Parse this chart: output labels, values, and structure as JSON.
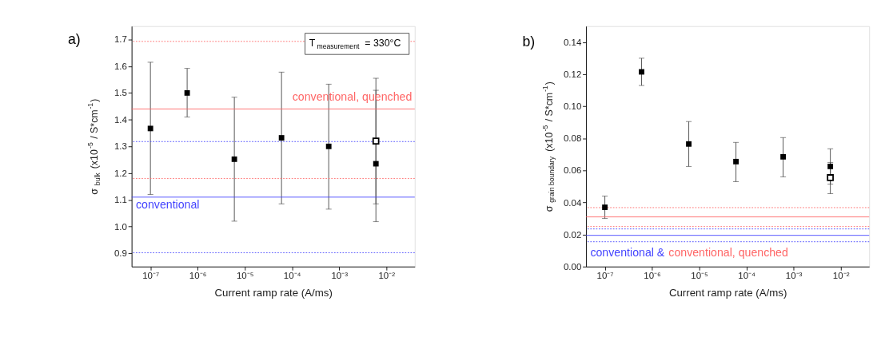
{
  "chart_data": [
    {
      "type": "scatter",
      "xlabel": "Current ramp rate (A/ms)",
      "ylabel": "σ$_{bulk}$ (x10$^{-5}$ / S*cm$^{-1}$)",
      "log": "x",
      "marker": "square",
      "grid": false,
      "xlim": [
        4e-08,
        0.04
      ],
      "xticks": [
        {
          "value": 1e-07,
          "label": "10⁻⁷"
        },
        {
          "value": 1e-06,
          "label": "10⁻⁶"
        },
        {
          "value": 1e-05,
          "label": "10⁻⁵"
        },
        {
          "value": 0.0001,
          "label": "10⁻⁴"
        },
        {
          "value": 0.001,
          "label": "10⁻³"
        },
        {
          "value": 0.01,
          "label": "10⁻²"
        }
      ],
      "ylim": [
        0.85,
        1.75
      ],
      "yticks": [
        0.9,
        {
          "value": 1.0,
          "label": "1.0"
        },
        1.1,
        1.2,
        1.3,
        1.4,
        1.5,
        1.6,
        1.7
      ],
      "series": [
        {
          "color": "#000000",
          "x": [
            1e-07,
            6e-07,
            6e-06,
            6e-05,
            0.0006,
            0.006
          ],
          "values": [
            1.367,
            1.5,
            1.252,
            1.332,
            1.3,
            1.235
          ],
          "errors": [
            [
              1.12,
              1.615
            ],
            [
              1.41,
              1.592
            ],
            [
              1.02,
              1.484
            ],
            [
              1.085,
              1.578
            ],
            [
              1.065,
              1.533
            ],
            [
              1.018,
              1.555
            ]
          ]
        },
        {
          "color": "#000000",
          "x": [
            0.006
          ],
          "values": [
            1.32
          ],
          "errors": [
            [
              1.085,
              1.51
            ]
          ]
        }
      ],
      "ref_lines": [
        {
          "axis": "y",
          "value": 1.693,
          "color": "#ff6666",
          "line_style": "dotted"
        },
        {
          "axis": "y",
          "value": 1.44,
          "color": "#ff6666",
          "line_style": "solid",
          "label": "conventional, quenched"
        },
        {
          "axis": "y",
          "value": 1.318,
          "color": "#4444ff",
          "line_style": "dotted"
        },
        {
          "axis": "y",
          "value": 1.18,
          "color": "#ff6666",
          "line_style": "dotted"
        },
        {
          "axis": "y",
          "value": 1.11,
          "color": "#4444ff",
          "line_style": "solid",
          "label": "conventional"
        },
        {
          "axis": "y",
          "value": 0.902,
          "color": "#4444ff",
          "line_style": "dotted"
        }
      ],
      "annotations": [
        "a)",
        "T$_{measurement}$ = 330°C"
      ]
    },
    {
      "type": "scatter",
      "xlabel": "Current ramp rate (A/ms)",
      "ylabel": "σ$_{grain boundary}$ (x10$^{-5}$ / S*cm$^{-1}$)",
      "log": "x",
      "marker": "square",
      "grid": false,
      "xlim": [
        4e-08,
        0.04
      ],
      "xticks": [
        {
          "value": 1e-07,
          "label": "10⁻⁷"
        },
        {
          "value": 1e-06,
          "label": "10⁻⁶"
        },
        {
          "value": 1e-05,
          "label": "10⁻⁵"
        },
        {
          "value": 0.0001,
          "label": "10⁻⁴"
        },
        {
          "value": 0.001,
          "label": "10⁻³"
        },
        {
          "value": 0.01,
          "label": "10⁻²"
        }
      ],
      "ylim": [
        0,
        0.15
      ],
      "yticks": [
        {
          "value": 0,
          "label": "0.00"
        },
        0.02,
        0.04,
        0.06,
        0.08,
        {
          "value": 0.1,
          "label": "0.10"
        },
        0.12,
        0.14
      ],
      "series": [
        {
          "color": "#000000",
          "x": [
            1e-07,
            6e-07,
            6e-06,
            6e-05,
            0.0006,
            0.006
          ],
          "values": [
            0.037,
            0.1215,
            0.0765,
            0.0655,
            0.0685,
            0.0625
          ],
          "errors": [
            [
              0.03,
              0.044
            ],
            [
              0.113,
              0.13
            ],
            [
              0.0625,
              0.0905
            ],
            [
              0.053,
              0.0775
            ],
            [
              0.056,
              0.0805
            ],
            [
              0.0515,
              0.0735
            ]
          ]
        },
        {
          "color": "#000000",
          "x": [
            0.006
          ],
          "values": [
            0.0555
          ],
          "errors": [
            [
              0.0455,
              0.065
            ]
          ]
        }
      ],
      "ref_lines": [
        {
          "axis": "y",
          "value": 0.0368,
          "color": "#ff6666",
          "line_style": "dotted"
        },
        {
          "axis": "y",
          "value": 0.031,
          "color": "#ff6666",
          "line_style": "solid",
          "label": "conventional, quenched"
        },
        {
          "axis": "y",
          "value": 0.025,
          "color": "#ff6666",
          "line_style": "dotted"
        },
        {
          "axis": "y",
          "value": 0.0235,
          "color": "#4444ff",
          "line_style": "dotted"
        },
        {
          "axis": "y",
          "value": 0.0195,
          "color": "#4444ff",
          "line_style": "solid",
          "label": "conventional &"
        },
        {
          "axis": "y",
          "value": 0.0155,
          "color": "#4444ff",
          "line_style": "dotted"
        }
      ],
      "annotations": [
        "b)"
      ]
    }
  ]
}
